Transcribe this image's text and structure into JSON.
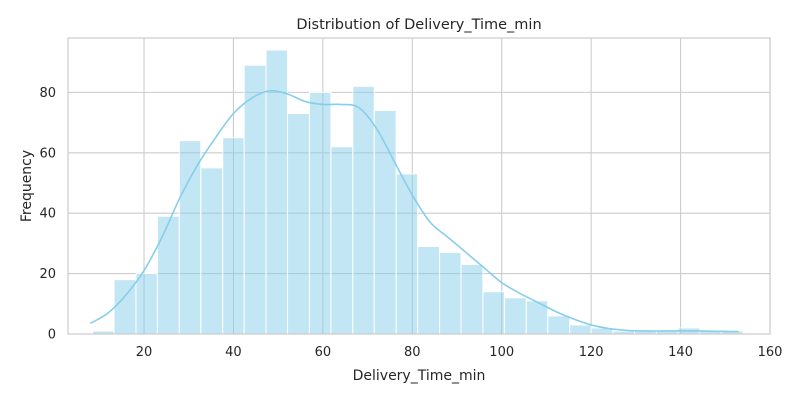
{
  "chart_data": {
    "type": "bar",
    "title": "Distribution of Delivery_Time_min",
    "xlabel": "Delivery_Time_min",
    "ylabel": "Frequency",
    "xlim": [
      3,
      160
    ],
    "ylim": [
      0,
      98
    ],
    "xticks": [
      20,
      40,
      60,
      80,
      100,
      120,
      140,
      160
    ],
    "yticks": [
      0,
      20,
      40,
      60,
      80
    ],
    "grid": true,
    "bin_edges": [
      8.5,
      13.3,
      18.2,
      23.0,
      27.9,
      32.7,
      37.6,
      42.4,
      47.3,
      52.1,
      57.0,
      61.8,
      66.7,
      71.5,
      76.4,
      81.2,
      86.1,
      90.9,
      95.8,
      100.6,
      105.5,
      110.3,
      115.2,
      120.0,
      124.9,
      129.7,
      134.6,
      139.4,
      144.3,
      149.1,
      154.0
    ],
    "values": [
      1,
      18,
      20,
      39,
      64,
      55,
      65,
      89,
      94,
      73,
      80,
      62,
      82,
      74,
      53,
      29,
      27,
      23,
      14,
      12,
      11,
      6,
      3,
      2,
      1,
      1,
      1,
      2,
      1,
      1
    ],
    "kde": {
      "x": [
        8,
        12,
        16,
        20,
        24,
        28,
        32,
        36,
        40,
        44,
        48,
        52,
        56,
        60,
        64,
        68,
        72,
        76,
        80,
        84,
        88,
        92,
        96,
        100,
        104,
        108,
        112,
        116,
        120,
        124,
        128,
        132,
        136,
        140,
        144,
        148,
        153
      ],
      "y": [
        3.5,
        7,
        13,
        21,
        32,
        45,
        56,
        65,
        73,
        78,
        80.5,
        79.5,
        77,
        76,
        76,
        75,
        68,
        57,
        46,
        37,
        32,
        27,
        22,
        17,
        13.5,
        10.5,
        7.5,
        5,
        3,
        1.8,
        1.2,
        1,
        1,
        1,
        1,
        0.9,
        0.8
      ]
    },
    "colors": {
      "bar": "#87ceeb",
      "bar_opacity": 0.5,
      "kde": "#87ceeb"
    }
  }
}
